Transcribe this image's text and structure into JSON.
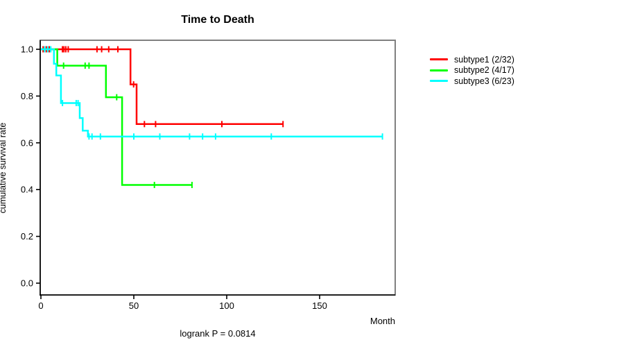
{
  "chart_data": {
    "type": "line",
    "subtype": "kaplan-meier-step",
    "title": "Time to Death",
    "xlabel": "Month",
    "ylabel": "cumulative survival rate",
    "caption": "logrank P = 0.0814",
    "xlim": [
      0,
      190
    ],
    "ylim": [
      0.0,
      1.0
    ],
    "x_ticks": [
      0,
      50,
      100,
      150
    ],
    "y_ticks": [
      "0.0",
      "0.2",
      "0.4",
      "0.6",
      "0.8",
      "1.0"
    ],
    "grid": "off",
    "legend_position": "right-outside",
    "box_color": "#808080",
    "axis_color": "#000000",
    "series": [
      {
        "name": "subtype1 (2/32)",
        "color": "#ff0000",
        "steps": [
          [
            0,
            1.0
          ],
          [
            48.2,
            1.0
          ],
          [
            48.2,
            0.85
          ],
          [
            51.5,
            0.85
          ],
          [
            51.5,
            0.68
          ],
          [
            130.3,
            0.68
          ]
        ],
        "censors": [
          [
            1.2,
            1.0
          ],
          [
            2.9,
            1.0
          ],
          [
            4.5,
            1.0
          ],
          [
            11.6,
            1.0
          ],
          [
            12.4,
            1.0
          ],
          [
            13.4,
            1.0
          ],
          [
            14.7,
            1.0
          ],
          [
            30.2,
            1.0
          ],
          [
            32.7,
            1.0
          ],
          [
            36.5,
            1.0
          ],
          [
            41.4,
            1.0
          ],
          [
            49.9,
            0.85
          ],
          [
            55.7,
            0.68
          ],
          [
            61.7,
            0.68
          ],
          [
            97.4,
            0.68
          ],
          [
            130.3,
            0.68
          ]
        ]
      },
      {
        "name": "subtype2 (4/17)",
        "color": "#00ff00",
        "steps": [
          [
            0,
            1.0
          ],
          [
            8.8,
            1.0
          ],
          [
            8.8,
            0.93
          ],
          [
            35,
            0.93
          ],
          [
            35,
            0.795
          ],
          [
            43.7,
            0.795
          ],
          [
            43.7,
            0.42
          ],
          [
            81.3,
            0.42
          ]
        ],
        "censors": [
          [
            12.2,
            0.93
          ],
          [
            23.8,
            0.93
          ],
          [
            25.9,
            0.93
          ],
          [
            40.8,
            0.795
          ],
          [
            61.1,
            0.42
          ],
          [
            81.3,
            0.42
          ]
        ]
      },
      {
        "name": "subtype3 (6/23)",
        "color": "#00ffff",
        "steps": [
          [
            0,
            1.0
          ],
          [
            7,
            1.0
          ],
          [
            7,
            0.938
          ],
          [
            8.3,
            0.938
          ],
          [
            8.3,
            0.888
          ],
          [
            10.8,
            0.888
          ],
          [
            10.8,
            0.77
          ],
          [
            20.9,
            0.77
          ],
          [
            20.9,
            0.706
          ],
          [
            22.5,
            0.706
          ],
          [
            22.5,
            0.652
          ],
          [
            25.3,
            0.652
          ],
          [
            25.3,
            0.627
          ],
          [
            183.8,
            0.627
          ]
        ],
        "censors": [
          [
            2.0,
            1.0
          ],
          [
            3.7,
            1.0
          ],
          [
            5.3,
            1.0
          ],
          [
            11.6,
            0.77
          ],
          [
            19.0,
            0.77
          ],
          [
            20.0,
            0.77
          ],
          [
            25.9,
            0.627
          ],
          [
            27.5,
            0.627
          ],
          [
            32,
            0.627
          ],
          [
            50,
            0.627
          ],
          [
            64,
            0.627
          ],
          [
            80,
            0.627
          ],
          [
            87,
            0.627
          ],
          [
            94,
            0.627
          ],
          [
            124,
            0.627
          ],
          [
            183.8,
            0.627
          ]
        ]
      }
    ]
  }
}
